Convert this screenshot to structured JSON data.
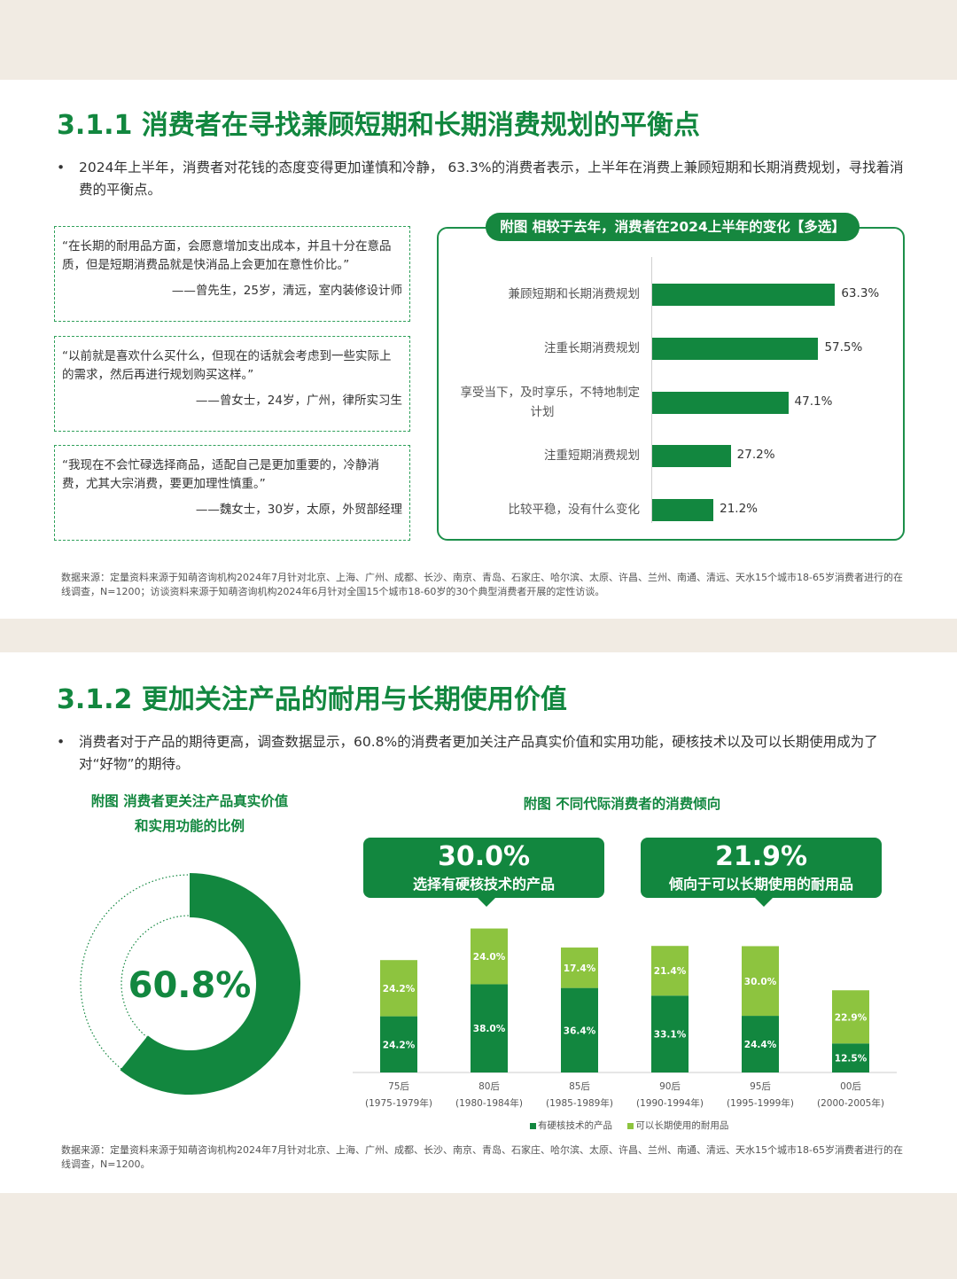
{
  "slide1": {
    "title": "3.1.1 消费者在寻找兼顾短期和长期消费规划的平衡点",
    "bullet_marker": "•",
    "bullet": "2024年上半年，消费者对花钱的态度变得更加谨慎和冷静， 63.3%的消费者表示，上半年在消费上兼顾短期和长期消费规划，寻找着消费的平衡点。",
    "quotes": [
      {
        "text": "“在长期的耐用品方面，会愿意增加支出成本，并且十分在意品质，但是短期消费品就是快消品上会更加在意性价比。”",
        "author": "——曾先生，25岁，清远，室内装修设计师"
      },
      {
        "text": "“以前就是喜欢什么买什么，但现在的话就会考虑到一些实际上的需求，然后再进行规划购买这样。”",
        "author": "——曾女士，24岁，广州，律所实习生"
      },
      {
        "text": "“我现在不会忙碌选择商品，适配自己是更加重要的，冷静消费，尤其大宗消费，要更加理性慎重。”",
        "author": "——魏女士，30岁，太原，外贸部经理"
      }
    ],
    "source": "数据来源：定量资料来源于知萌咨询机构2024年7月针对北京、上海、广州、成都、长沙、南京、青岛、石家庄、哈尔滨、太原、许昌、兰州、南通、清远、天水15个城市18-65岁消费者进行的在线调查，N=1200；访谈资料来源于知萌咨询机构2024年6月针对全国15个城市18-60岁的30个典型消费者开展的定性访谈。"
  },
  "slide2": {
    "title": "3.1.2  更加关注产品的耐用与长期使用价值",
    "bullet_marker": "•",
    "bullet": "消费者对于产品的期待更高，调查数据显示，60.8%的消费者更加关注产品真实价值和实用功能，硬核技术以及可以长期使用成为了对“好物”的期待。",
    "donut_caption_1": "附图 消费者更关注产品真实价值",
    "donut_caption_2": "和实用功能的比例",
    "bar_caption": "附图 不同代际消费者的消费倾向",
    "callout1": {
      "value": "30.0%",
      "label": "选择有硬核技术的产品"
    },
    "callout2": {
      "value": "21.9%",
      "label": "倾向于可以长期使用的耐用品"
    },
    "source": "数据来源：定量资料来源于知萌咨询机构2024年7月针对北京、上海、广州、成都、长沙、南京、青岛、石家庄、哈尔滨、太原、许昌、兰州、南通、清远、天水15个城市18-65岁消费者进行的在线调查，N=1200。"
  },
  "colors": {
    "dark_green": "#12873f",
    "light_green": "#8dc43f",
    "background": "#f1ebe3"
  },
  "chart_data": [
    {
      "type": "bar",
      "orientation": "horizontal",
      "title": "附图 相较于去年，消费者在2024上半年的变化【多选】",
      "categories": [
        "兼顾短期和长期消费规划",
        "注重长期消费规划",
        "享受当下，及时享乐，不特地制定计划",
        "注重短期消费规划",
        "比较平稳，没有什么变化"
      ],
      "category_lines": [
        [
          "兼顾短期和长期消费规划"
        ],
        [
          "注重长期消费规划"
        ],
        [
          "享受当下，及时享乐，不特地制定",
          "计划"
        ],
        [
          "注重短期消费规划"
        ],
        [
          "比较平稳，没有什么变化"
        ]
      ],
      "values": [
        63.3,
        57.5,
        47.1,
        27.2,
        21.2
      ],
      "value_labels": [
        "63.3%",
        "57.5%",
        "47.1%",
        "27.2%",
        "21.2%"
      ],
      "unit": "%",
      "xlim": [
        0,
        100
      ],
      "color": "#12873f"
    },
    {
      "type": "pie",
      "variant": "donut",
      "values": [
        60.8,
        39.2
      ],
      "center_label": "60.8%",
      "colors": [
        "#12873f",
        "#ffffff"
      ]
    },
    {
      "type": "bar",
      "stacked": true,
      "categories": [
        "75后",
        "80后",
        "85后",
        "90后",
        "95后",
        "00后"
      ],
      "category_sublabels": [
        "(1975-1979年)",
        "(1980-1984年)",
        "(1985-1989年)",
        "(1990-1994年)",
        "(1995-1999年)",
        "(2000-2005年)"
      ],
      "series": [
        {
          "name": "有硬核技术的产品",
          "values": [
            24.2,
            38.0,
            36.4,
            33.1,
            24.4,
            12.5
          ],
          "labels": [
            "24.2%",
            "38.0%",
            "36.4%",
            "33.1%",
            "24.4%",
            "12.5%"
          ],
          "color": "#12873f"
        },
        {
          "name": "可以长期使用的耐用品",
          "values": [
            24.2,
            24.0,
            17.4,
            21.4,
            30.0,
            22.9
          ],
          "labels": [
            "24.2%",
            "24.0%",
            "17.4%",
            "21.4%",
            "30.0%",
            "22.9%"
          ],
          "color": "#8dc43f"
        }
      ],
      "ylim": [
        0,
        70
      ],
      "legend": "bottom"
    }
  ]
}
